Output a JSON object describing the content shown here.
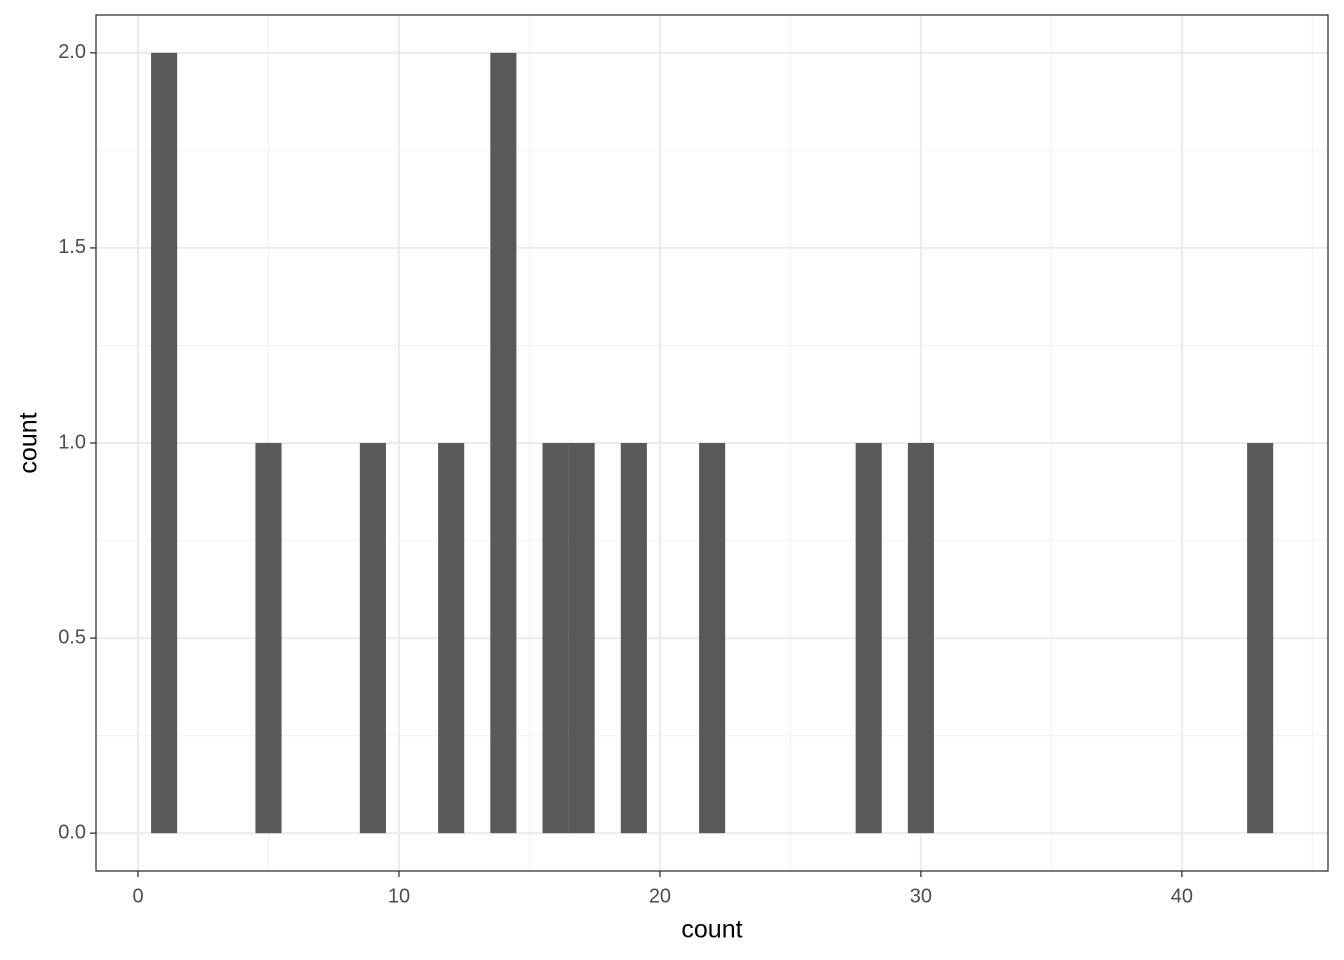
{
  "chart_data": {
    "type": "histogram",
    "x_label": "count",
    "y_label": "count",
    "bins": [
      0.5,
      1.5,
      2.5,
      3.5,
      4.5,
      5.5,
      6.5,
      7.5,
      8.5,
      9.5,
      10.5,
      11.5,
      12.5,
      13.5,
      14.5,
      15.5,
      16.5,
      17.5,
      18.5,
      19.5,
      20.5,
      21.5,
      22.5,
      23.5,
      24.5,
      25.5,
      26.5,
      27.5,
      28.5,
      29.5,
      30.5,
      31.5,
      32.5,
      33.5,
      34.5,
      35.5,
      36.5,
      37.5,
      38.5,
      39.5,
      40.5,
      41.5,
      42.5,
      43.5
    ],
    "counts": [
      2,
      0,
      0,
      0,
      1,
      0,
      0,
      0,
      1,
      0,
      0,
      1,
      0,
      2,
      0,
      1,
      1,
      0,
      1,
      0,
      0,
      1,
      0,
      0,
      0,
      0,
      0,
      1,
      0,
      1,
      0,
      0,
      0,
      0,
      0,
      0,
      0,
      0,
      0,
      0,
      0,
      0,
      1
    ],
    "color": "#595959",
    "xlim": [
      -1.61,
      45.6
    ],
    "xticks": [
      0,
      10,
      20,
      30,
      40
    ],
    "ylim": [
      -0.097,
      2.097
    ],
    "yticks": [
      {
        "value": 0,
        "label": "0.0"
      },
      {
        "value": 0.5,
        "label": "0.5"
      },
      {
        "value": 1,
        "label": "1.0"
      },
      {
        "value": 1.5,
        "label": "1.5"
      },
      {
        "value": 2,
        "label": "2.0"
      }
    ],
    "grid": true
  }
}
